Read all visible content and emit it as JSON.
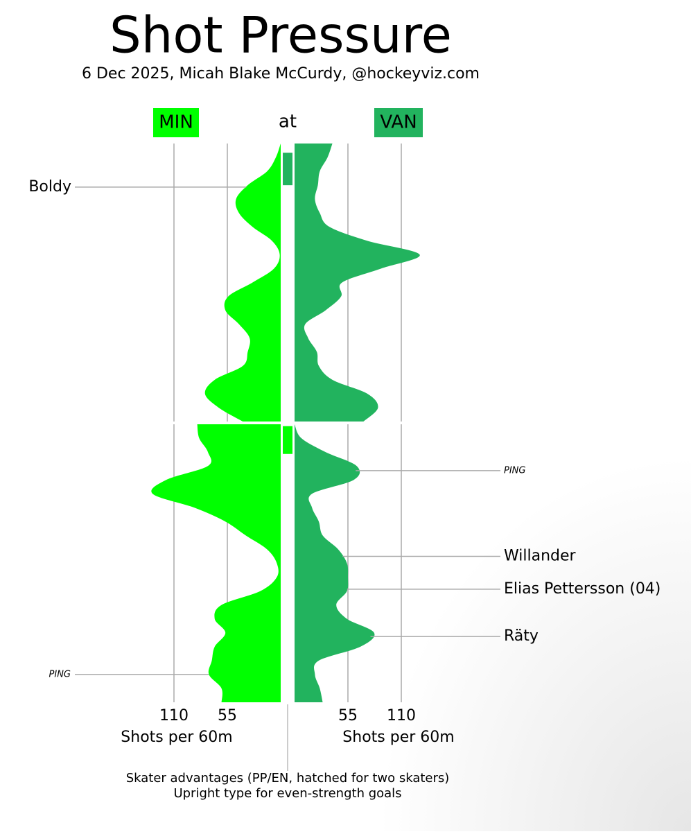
{
  "chart_data": {
    "type": "shot-pressure",
    "title": "Shot Pressure",
    "subtitle": "6 Dec 2025, Micah Blake McCurdy, @hockeyviz.com",
    "connector": "at",
    "series": [
      {
        "name": "MIN",
        "color": "#00ff00",
        "side": "left"
      },
      {
        "name": "VAN",
        "color": "#22b35e",
        "side": "right"
      }
    ],
    "xticks": [
      55,
      110
    ],
    "xlabel": "Shots per 60m",
    "panels": [
      {
        "tlim": [
          0,
          30
        ],
        "t": [
          0,
          1.5,
          3,
          4.5,
          6,
          7.5,
          9,
          10.5,
          12,
          13.5,
          15,
          16.5,
          18,
          19.5,
          21,
          22.5,
          24,
          25.5,
          27,
          28.5,
          30
        ],
        "values": [
          [
            0,
            5,
            14,
            34,
            46,
            43,
            29,
            9,
            1,
            7,
            29,
            54,
            57,
            43,
            32,
            34,
            39,
            68,
            78,
            64,
            39
          ],
          [
            39,
            34,
            26,
            24,
            21,
            26,
            36,
            75,
            129,
            89,
            49,
            48,
            32,
            11,
            14,
            23,
            25,
            39,
            75,
            86,
            71
          ]
        ]
      },
      {
        "tlim": [
          30,
          60
        ],
        "t": [
          30,
          31.5,
          33,
          34.5,
          36,
          37.5,
          39,
          40.5,
          42,
          43.5,
          45,
          46.5,
          48,
          49.5,
          51,
          52.5,
          54,
          55.5,
          57,
          58.5,
          60
        ],
        "values": [
          [
            86,
            84,
            75,
            75,
            118,
            132,
            89,
            57,
            36,
            14,
            4,
            4,
            21,
            61,
            68,
            57,
            68,
            71,
            74,
            61,
            61
          ],
          [
            0,
            7,
            32,
            64,
            61,
            18,
            18,
            25,
            29,
            45,
            54,
            55,
            54,
            43,
            54,
            82,
            68,
            25,
            21,
            26,
            29
          ]
        ]
      }
    ],
    "advantages": [
      {
        "team": 1,
        "start": 1.0,
        "end": 4.5
      },
      {
        "team": 0,
        "start": 30.2,
        "end": 33.2
      }
    ],
    "goals": [
      {
        "label": "Boldy",
        "team": 0,
        "t": 4.7,
        "strength": "EV"
      },
      {
        "label": "PING",
        "team": 1,
        "t": 35.0,
        "strength": "PP"
      },
      {
        "label": "Willander",
        "team": 1,
        "t": 44.25,
        "strength": "EV"
      },
      {
        "label": "Elias Pettersson (04)",
        "team": 1,
        "t": 47.8,
        "strength": "EV"
      },
      {
        "label": "Räty",
        "team": 1,
        "t": 52.9,
        "strength": "EV"
      },
      {
        "label": "PING",
        "team": 0,
        "t": 57.0,
        "strength": "PP"
      }
    ],
    "notes": [
      "Skater advantages (PP/EN, hatched for two skaters)",
      "Upright type for even-strength goals"
    ]
  }
}
